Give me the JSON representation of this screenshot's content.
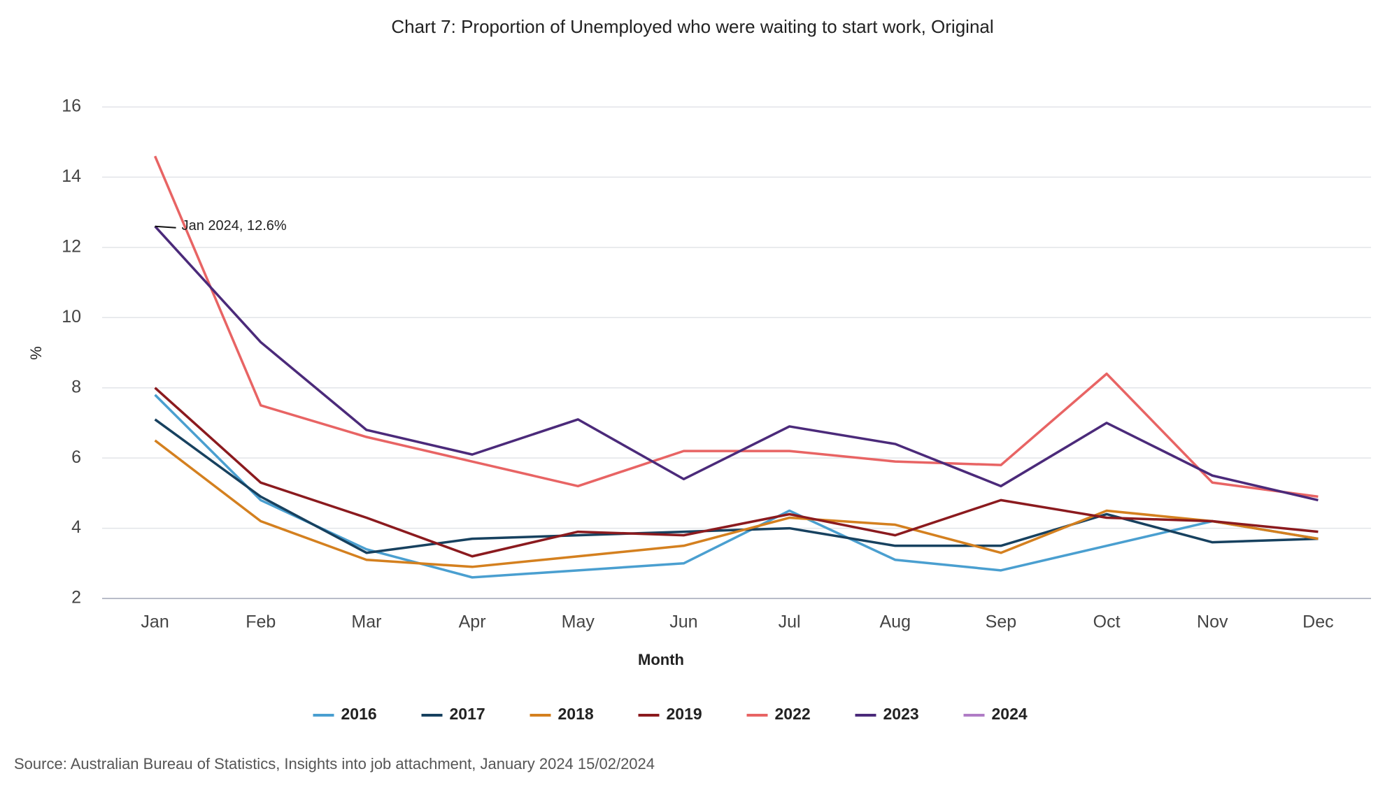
{
  "chart_data": {
    "type": "line",
    "title": "Chart 7: Proportion of Unemployed who were waiting to start work, Original",
    "x_label": "Month",
    "y_label": "%",
    "categories": [
      "Jan",
      "Feb",
      "Mar",
      "Apr",
      "May",
      "Jun",
      "Jul",
      "Aug",
      "Sep",
      "Oct",
      "Nov",
      "Dec"
    ],
    "series": [
      {
        "name": "2016",
        "color": "#4a9fd0",
        "values": [
          7.8,
          4.8,
          3.4,
          2.6,
          2.8,
          3.0,
          4.5,
          3.1,
          2.8,
          3.5,
          4.2,
          3.7
        ]
      },
      {
        "name": "2017",
        "color": "#17415f",
        "values": [
          7.1,
          4.9,
          3.3,
          3.7,
          3.8,
          3.9,
          4.0,
          3.5,
          3.5,
          4.4,
          3.6,
          3.7
        ]
      },
      {
        "name": "2018",
        "color": "#d4801f",
        "values": [
          6.5,
          4.2,
          3.1,
          2.9,
          3.2,
          3.5,
          4.3,
          4.1,
          3.3,
          4.5,
          4.2,
          3.7
        ]
      },
      {
        "name": "2019",
        "color": "#8b1a1e",
        "values": [
          8.0,
          5.3,
          4.3,
          3.2,
          3.9,
          3.8,
          4.4,
          3.8,
          4.8,
          4.3,
          4.2,
          3.9
        ]
      },
      {
        "name": "2022",
        "color": "#e86464",
        "values": [
          14.6,
          7.5,
          6.6,
          5.9,
          5.2,
          6.2,
          6.2,
          5.9,
          5.8,
          8.4,
          5.3,
          4.9
        ]
      },
      {
        "name": "2023",
        "color": "#4b2a7a",
        "values": [
          12.6,
          9.3,
          6.8,
          6.1,
          7.1,
          5.4,
          6.9,
          6.4,
          5.2,
          7.0,
          5.5,
          4.8
        ]
      },
      {
        "name": "2024",
        "color": "#b07cc6",
        "values": [
          12.6,
          null,
          null,
          null,
          null,
          null,
          null,
          null,
          null,
          null,
          null,
          null
        ]
      }
    ],
    "annotation": "Jan 2024, 12.6%",
    "ylim": [
      2,
      16
    ],
    "yticks": [
      2,
      4,
      6,
      8,
      10,
      12,
      14,
      16
    ],
    "grid": true,
    "legend": "bottom",
    "source": "Source: Australian Bureau of Statistics, Insights into job attachment, January 2024 15/02/2024"
  }
}
